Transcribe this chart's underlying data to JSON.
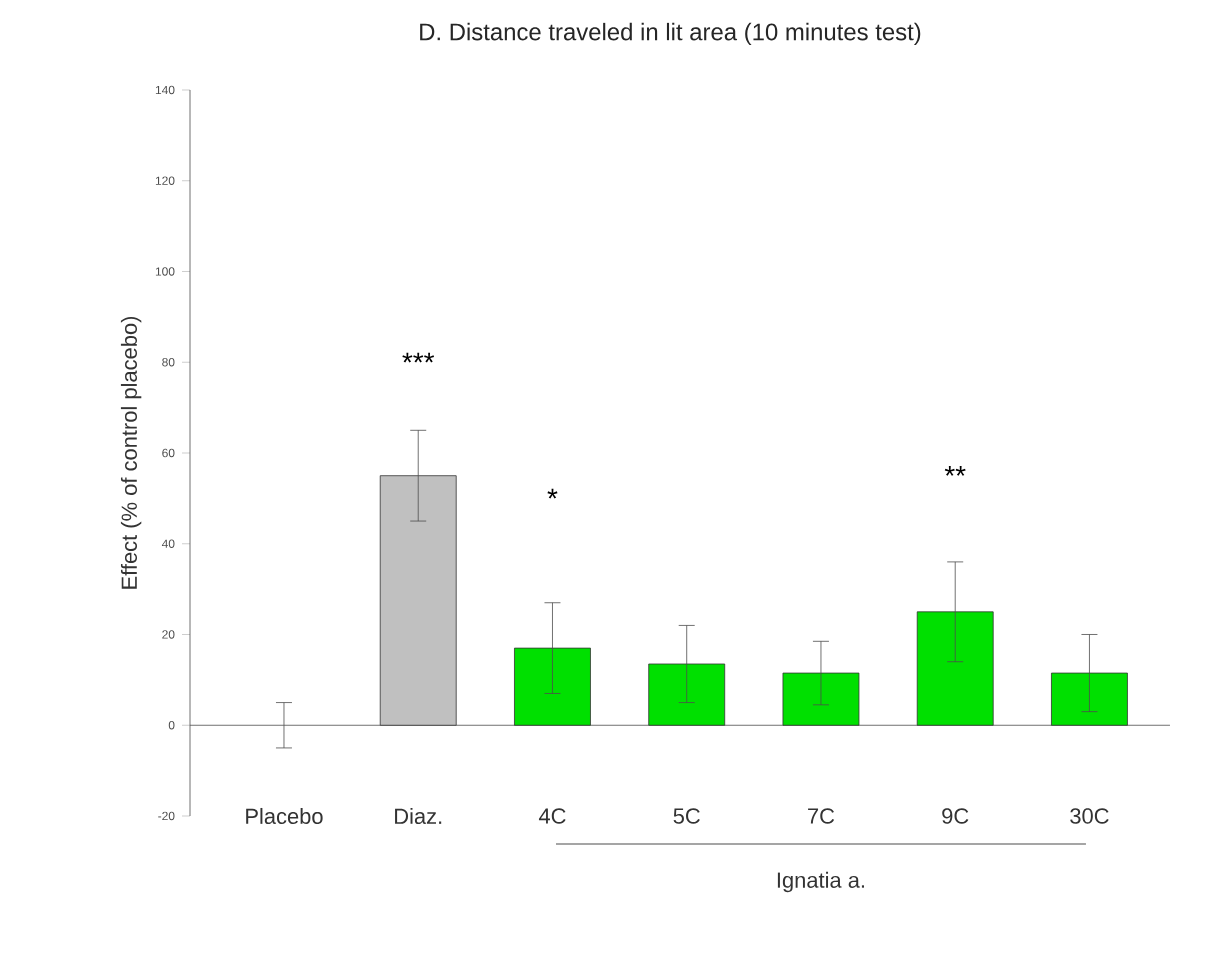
{
  "chart_data": {
    "type": "bar",
    "title": "D. Distance traveled in lit area (10 minutes test)",
    "ylabel": "Effect (% of control placebo)",
    "categories": [
      "Placebo",
      "Diaz.",
      "4C",
      "5C",
      "7C",
      "9C",
      "30C"
    ],
    "values": [
      0,
      55,
      17,
      13.5,
      11.5,
      25,
      11.5
    ],
    "errors": [
      5,
      10,
      10,
      8.5,
      7,
      11,
      8.5
    ],
    "colors": [
      "#c0c0c0",
      "#c0c0c0",
      "#00e000",
      "#00e000",
      "#00e000",
      "#00e000",
      "#00e000"
    ],
    "ylim": [
      -20,
      140
    ],
    "yticks": [
      -20,
      0,
      20,
      40,
      60,
      80,
      100,
      120,
      140
    ],
    "ref_lines": [
      {
        "axis": "y",
        "value": 0
      }
    ],
    "annotations": [
      "***",
      "*",
      "**",
      "Ignatia a."
    ],
    "grid": false
  }
}
